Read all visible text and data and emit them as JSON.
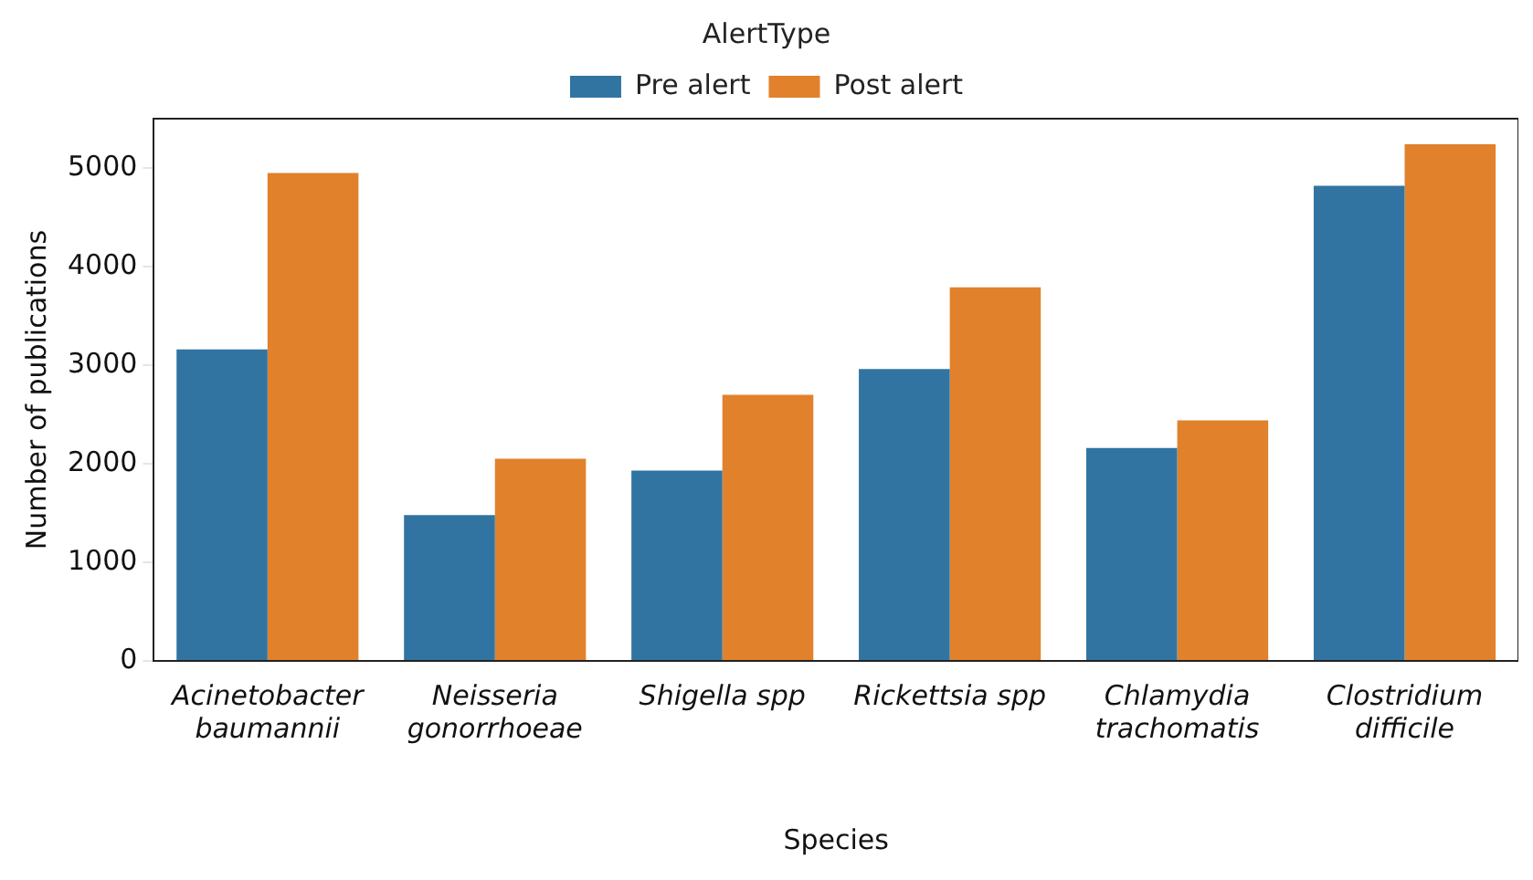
{
  "chart_data": {
    "type": "bar",
    "xlabel": "Species",
    "ylabel": "Number of publications",
    "legend_title": "AlertType",
    "categories": [
      "Acinetobacter\nbaumannii",
      "Neisseria\ngonorrhoeae",
      "Shigella spp",
      "Rickettsia spp",
      "Chlamydia\ntrachomatis",
      "Clostridium\ndifficile"
    ],
    "series": [
      {
        "name": "Pre alert",
        "color": "#3274a1",
        "values": [
          3160,
          1480,
          1930,
          2960,
          2160,
          4820
        ]
      },
      {
        "name": "Post alert",
        "color": "#e1812c",
        "values": [
          4950,
          2050,
          2700,
          3790,
          2440,
          5240
        ]
      }
    ],
    "ylim": [
      0,
      5500
    ],
    "yticks": [
      0,
      1000,
      2000,
      3000,
      4000,
      5000
    ],
    "grid": false,
    "legend": "top"
  }
}
